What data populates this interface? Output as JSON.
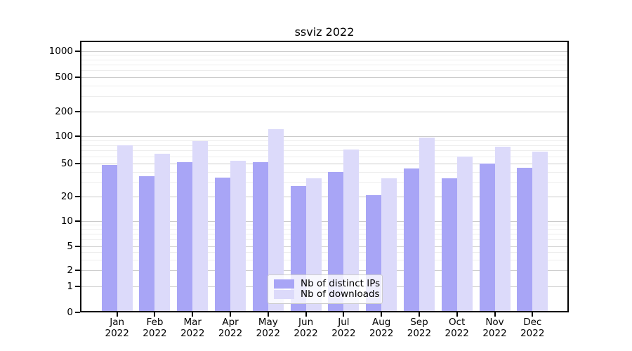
{
  "chart_data": {
    "type": "bar",
    "title": "ssviz 2022",
    "categories": [
      "Jan",
      "Feb",
      "Mar",
      "Apr",
      "May",
      "Jun",
      "Jul",
      "Aug",
      "Sep",
      "Oct",
      "Nov",
      "Dec"
    ],
    "x_tick_year": "2022",
    "series": [
      {
        "name": "Nb of distinct IPs",
        "color": "#a8a5f6",
        "values": [
          48,
          35,
          52,
          34,
          52,
          27,
          40,
          21,
          44,
          33,
          50,
          45
        ]
      },
      {
        "name": "Nb of downloads",
        "color": "#dcdafa",
        "values": [
          80,
          65,
          88,
          54,
          122,
          33,
          72,
          33,
          97,
          60,
          77,
          68
        ]
      }
    ],
    "y_ticks": [
      0,
      1,
      2,
      5,
      10,
      20,
      50,
      100,
      200,
      500,
      1000
    ],
    "y_scale": "symlog",
    "ylim": [
      0,
      1300
    ],
    "xlabel": "",
    "ylabel": "",
    "grid": true,
    "legend_position": "lower center"
  },
  "colors": {
    "background": "#ffffff",
    "spine": "#000000",
    "grid_major": "#cbcbcb",
    "grid_minor": "#ededed",
    "text": "#000000",
    "legend_border": "#cccccc"
  }
}
